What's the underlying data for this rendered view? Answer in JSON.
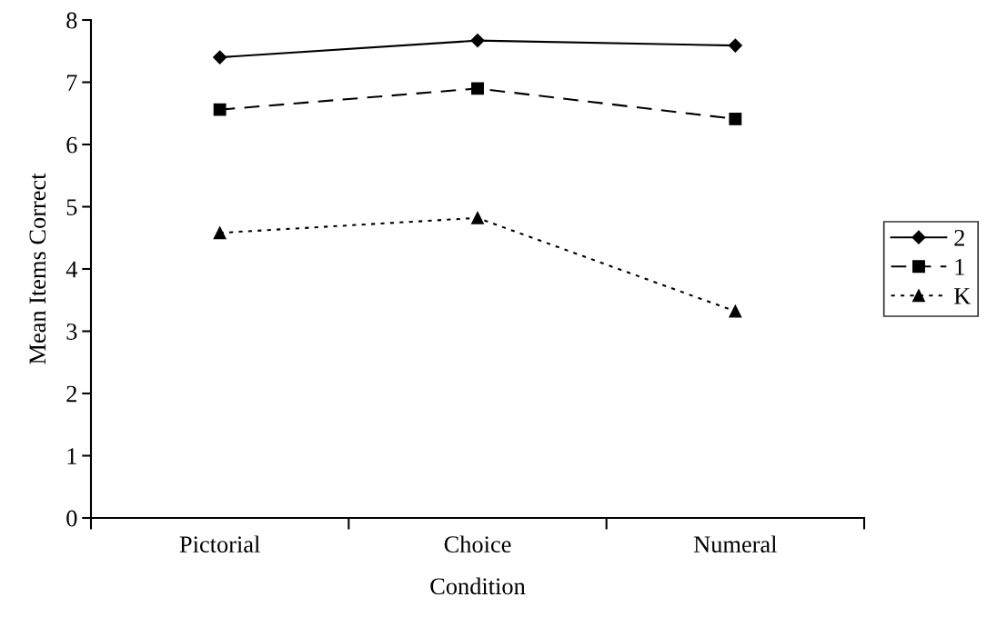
{
  "chart_data": {
    "type": "line",
    "xlabel": "Condition",
    "ylabel": "Mean Items Correct",
    "categories": [
      "Pictorial",
      "Choice",
      "Numeral"
    ],
    "series": [
      {
        "name": "2",
        "color": "#000000",
        "values": [
          7.4,
          7.67,
          7.59
        ],
        "marker": "diamond",
        "line_style": "solid"
      },
      {
        "name": "1",
        "color": "#000000",
        "values": [
          6.56,
          6.9,
          6.41
        ],
        "marker": "square",
        "line_style": "dashed"
      },
      {
        "name": "K",
        "color": "#000000",
        "values": [
          4.58,
          4.82,
          3.32
        ],
        "marker": "triangle",
        "line_style": "dotted"
      }
    ],
    "ylim": [
      0,
      8
    ],
    "yticks": [
      0,
      1,
      2,
      3,
      4,
      5,
      6,
      7,
      8
    ],
    "grid": false,
    "legend": "right"
  }
}
